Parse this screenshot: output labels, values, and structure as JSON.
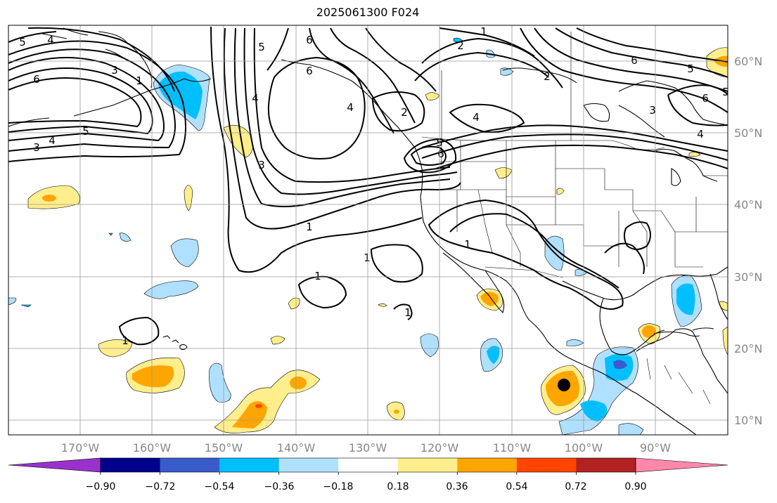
{
  "title": "2025061300 F024",
  "lon_labels": [
    "170°W",
    "160°W",
    "150°W",
    "140°W",
    "130°W",
    "120°W",
    "110°W",
    "100°W",
    "90°W"
  ],
  "lat_labels": [
    "60°N",
    "50°N",
    "40°N",
    "30°N",
    "20°N",
    "10°N"
  ],
  "colorbar": {
    "colors": [
      "#9932cc",
      "#00008b",
      "#3a5bcc",
      "#00bfff",
      "#b0e0ff",
      "#ffffff",
      "#ffee8c",
      "#ffa500",
      "#ff4500",
      "#b22222",
      "#ff88aa"
    ],
    "tick_labels": [
      "−0.90",
      "−0.72",
      "−0.54",
      "−0.36",
      "−0.18",
      "0.18",
      "0.36",
      "0.54",
      "0.72",
      "0.90"
    ]
  },
  "contour_labels": [
    "1",
    "1",
    "1",
    "1",
    "1",
    "1",
    "1",
    "1",
    "2",
    "2",
    "2",
    "3",
    "3",
    "3",
    "3",
    "4",
    "4",
    "4",
    "4",
    "4",
    "4",
    "5",
    "5",
    "5",
    "5",
    "5",
    "5",
    "6",
    "6",
    "6",
    "6",
    "6",
    "6"
  ],
  "colors": {
    "grid": "#999999",
    "label": "#888888",
    "coast": "#000000",
    "contour": "#000000"
  }
}
